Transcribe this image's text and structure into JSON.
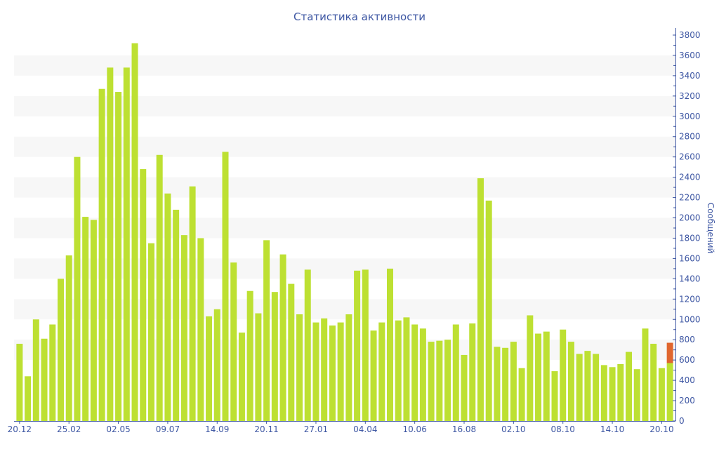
{
  "chart_data": {
    "type": "bar",
    "title": "Статистика активности",
    "xlabel": "",
    "ylabel": "Сообщений",
    "ylim": [
      0,
      3800
    ],
    "y_ticks": [
      0,
      200,
      400,
      600,
      800,
      1000,
      1200,
      1400,
      1600,
      1800,
      2000,
      2200,
      2400,
      2600,
      2800,
      3000,
      3200,
      3400,
      3600,
      3800
    ],
    "y_axis_side": "right",
    "grid": "alternating horizontal bands",
    "x_tick_labels": [
      "20.12",
      "25.02",
      "02.05",
      "09.07",
      "14.09",
      "20.11",
      "27.01",
      "04.04",
      "10.06",
      "16.08",
      "02.10",
      "08.10",
      "14.10",
      "20.10"
    ],
    "x_tick_every": 6,
    "stacked": true,
    "series": [
      {
        "color": "#bde032",
        "values": [
          760,
          440,
          1000,
          810,
          950,
          1400,
          1630,
          2600,
          2010,
          1980,
          3270,
          3480,
          3240,
          3480,
          3720,
          2480,
          1750,
          2620,
          2240,
          2080,
          1830,
          2310,
          1800,
          1030,
          1100,
          2650,
          1560,
          870,
          1280,
          1060,
          1780,
          1270,
          1640,
          1350,
          1050,
          1490,
          970,
          1010,
          940,
          970,
          1050,
          1480,
          1490,
          890,
          970,
          1500,
          990,
          1020,
          950,
          910,
          780,
          790,
          800,
          950,
          650,
          960,
          2390,
          2170,
          730,
          720,
          780,
          520,
          1040,
          860,
          880,
          490,
          900,
          780,
          660,
          690,
          660,
          550,
          530,
          560,
          680,
          510,
          910,
          760,
          520,
          570
        ]
      },
      {
        "color": "#e0662e",
        "values": [
          0,
          0,
          0,
          0,
          0,
          0,
          0,
          0,
          0,
          0,
          0,
          0,
          0,
          0,
          0,
          0,
          0,
          0,
          0,
          0,
          0,
          0,
          0,
          0,
          0,
          0,
          0,
          0,
          0,
          0,
          0,
          0,
          0,
          0,
          0,
          0,
          0,
          0,
          0,
          0,
          0,
          0,
          0,
          0,
          0,
          0,
          0,
          0,
          0,
          0,
          0,
          0,
          0,
          0,
          0,
          0,
          0,
          0,
          0,
          0,
          0,
          0,
          0,
          0,
          0,
          0,
          0,
          0,
          0,
          0,
          0,
          0,
          0,
          0,
          0,
          0,
          0,
          0,
          0,
          200
        ]
      }
    ],
    "axis_color": "#3e57a3",
    "band_color": "#f7f7f7"
  }
}
